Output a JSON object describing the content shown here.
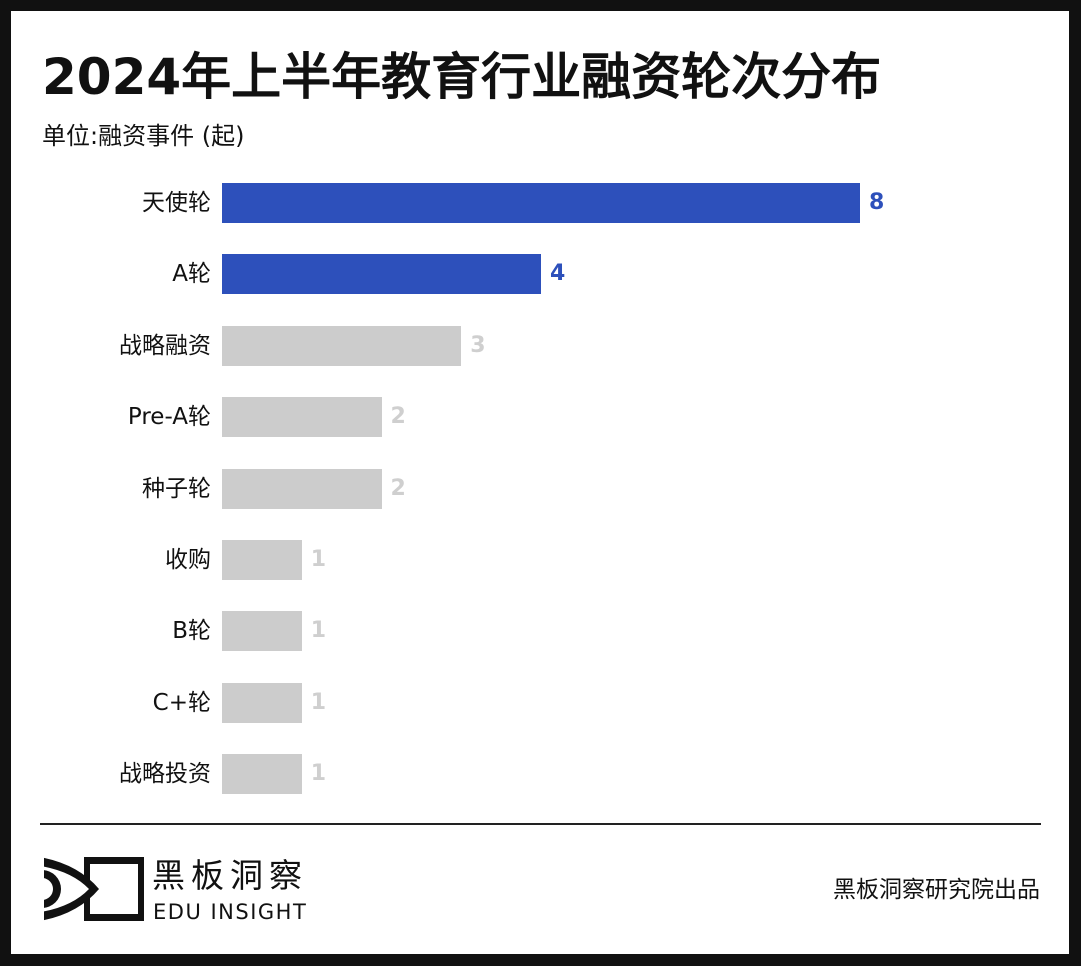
{
  "header": {
    "title": "2024年上半年教育行业融资轮次分布",
    "unit": "单位:融资事件 (起)"
  },
  "colors": {
    "highlight": "#2d50bb",
    "muted_bar": "#cccccc",
    "muted_value": "#cfcfcf",
    "text": "#111111"
  },
  "chart_data": {
    "type": "bar",
    "orientation": "horizontal",
    "title": "2024年上半年教育行业融资轮次分布",
    "subtitle": "单位:融资事件 (起)",
    "xlabel": "",
    "ylabel": "",
    "grid": false,
    "legend": false,
    "xlim": [
      0,
      8
    ],
    "categories": [
      "天使轮",
      "A轮",
      "战略融资",
      "Pre-A轮",
      "种子轮",
      "收购",
      "B轮",
      "C+轮",
      "战略投资"
    ],
    "values": [
      8,
      4,
      3,
      2,
      2,
      1,
      1,
      1,
      1
    ],
    "highlighted": [
      true,
      true,
      false,
      false,
      false,
      false,
      false,
      false,
      false
    ]
  },
  "rows": [
    {
      "label": "天使轮",
      "value": "8"
    },
    {
      "label": "A轮",
      "value": "4"
    },
    {
      "label": "战略融资",
      "value": "3"
    },
    {
      "label": "Pre-A轮",
      "value": "2"
    },
    {
      "label": "种子轮",
      "value": "2"
    },
    {
      "label": "收购",
      "value": "1"
    },
    {
      "label": "B轮",
      "value": "1"
    },
    {
      "label": "C+轮",
      "value": "1"
    },
    {
      "label": "战略投资",
      "value": "1"
    }
  ],
  "footer": {
    "brand_cn": "黑板洞察",
    "brand_en": "EDU INSIGHT",
    "credit": "黑板洞察研究院出品",
    "logo_icon": "eye-frame-logo-icon"
  }
}
